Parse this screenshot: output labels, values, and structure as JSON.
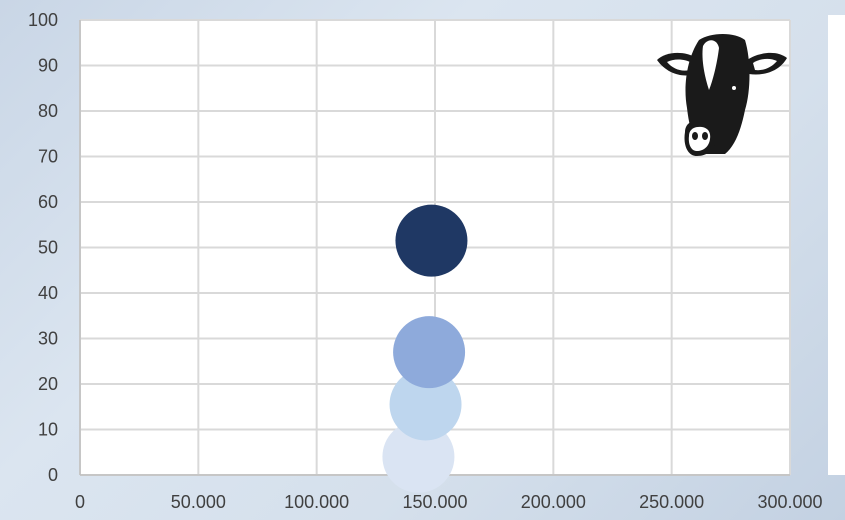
{
  "chart_data": {
    "type": "bubble",
    "title": "",
    "xlabel": "",
    "ylabel": "",
    "xlim": [
      0,
      300000
    ],
    "ylim": [
      0,
      100
    ],
    "x_ticks": [
      0,
      50000,
      100000,
      150000,
      200000,
      250000,
      300000
    ],
    "x_tick_labels": [
      "0",
      "50.000",
      "100.000",
      "150.000",
      "200.000",
      "250.000",
      "300.000"
    ],
    "y_ticks": [
      0,
      10,
      20,
      30,
      40,
      50,
      60,
      70,
      80,
      90,
      100
    ],
    "y_tick_labels": [
      "0",
      "10",
      "20",
      "30",
      "40",
      "50",
      "60",
      "70",
      "80",
      "90",
      "100"
    ],
    "grid": true,
    "points": [
      {
        "x": 143000,
        "y": 4,
        "color": "#dae4f3"
      },
      {
        "x": 146000,
        "y": 15.5,
        "color": "#bed6ee"
      },
      {
        "x": 147500,
        "y": 27,
        "color": "#8eaadb"
      },
      {
        "x": 148500,
        "y": 51.5,
        "color": "#1f3864"
      }
    ],
    "colors": {
      "plot_background": "#ffffff",
      "gridline": "#d9d9d9",
      "axis_line": "#bfbfbf"
    }
  },
  "decor": {
    "cow_icon": "cow-head-icon"
  }
}
